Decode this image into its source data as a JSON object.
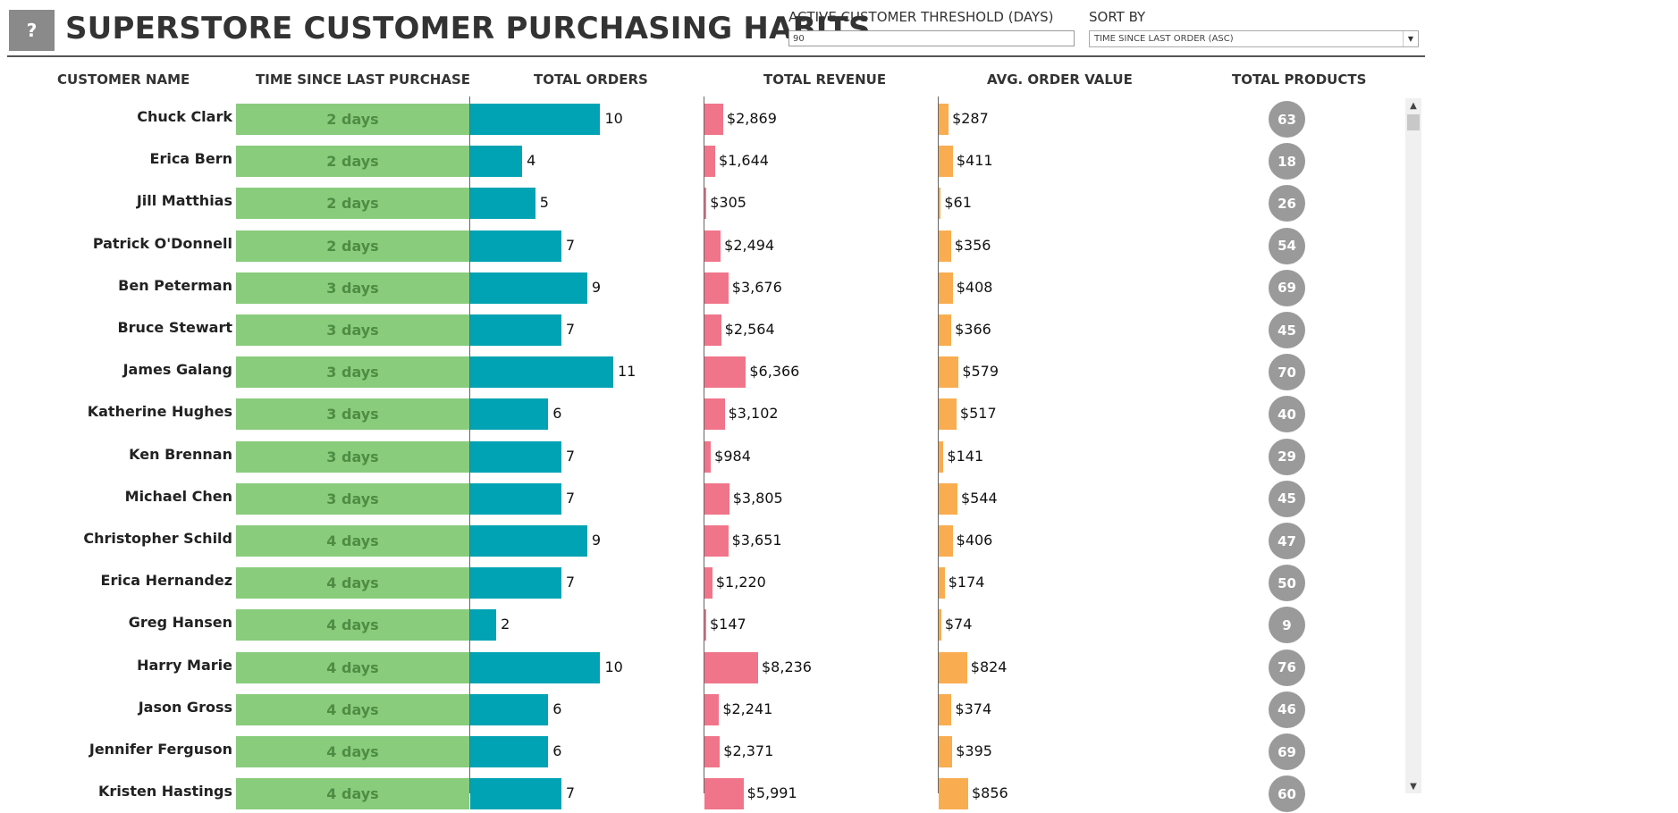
{
  "help_label": "?",
  "title": "SUPERSTORE CUSTOMER PURCHASING HABITS",
  "controls": {
    "threshold_label": "ACTIVE CUSTOMER THRESHOLD (DAYS)",
    "threshold_value": "90",
    "sort_label": "SORT BY",
    "sort_value": "TIME SINCE LAST ORDER (ASC)"
  },
  "columns": {
    "customer_name": "CUSTOMER NAME",
    "time_since": "TIME SINCE LAST PURCHASE",
    "orders": "TOTAL ORDERS",
    "revenue": "TOTAL REVENUE",
    "aov": "AVG. ORDER VALUE",
    "products": "TOTAL PRODUCTS"
  },
  "colors": {
    "time_bar": "#89cc7c",
    "orders_bar": "#00a3b3",
    "revenue_bar": "#f0758a",
    "aov_bar": "#f9ad50",
    "products_circle": "#9a9a9a"
  },
  "scales": {
    "orders_max": 11,
    "revenue_max": 8236,
    "aov_max": 856
  },
  "rows": [
    {
      "name": "Chuck Clark",
      "time": "2 days",
      "orders": 10,
      "orders_label": "10",
      "revenue": 2869,
      "revenue_label": "$2,869",
      "aov": 287,
      "aov_label": "$287",
      "products": "63"
    },
    {
      "name": "Erica Bern",
      "time": "2 days",
      "orders": 4,
      "orders_label": "4",
      "revenue": 1644,
      "revenue_label": "$1,644",
      "aov": 411,
      "aov_label": "$411",
      "products": "18"
    },
    {
      "name": "Jill Matthias",
      "time": "2 days",
      "orders": 5,
      "orders_label": "5",
      "revenue": 305,
      "revenue_label": "$305",
      "aov": 61,
      "aov_label": "$61",
      "products": "26"
    },
    {
      "name": "Patrick O'Donnell",
      "time": "2 days",
      "orders": 7,
      "orders_label": "7",
      "revenue": 2494,
      "revenue_label": "$2,494",
      "aov": 356,
      "aov_label": "$356",
      "products": "54"
    },
    {
      "name": "Ben Peterman",
      "time": "3 days",
      "orders": 9,
      "orders_label": "9",
      "revenue": 3676,
      "revenue_label": "$3,676",
      "aov": 408,
      "aov_label": "$408",
      "products": "69"
    },
    {
      "name": "Bruce Stewart",
      "time": "3 days",
      "orders": 7,
      "orders_label": "7",
      "revenue": 2564,
      "revenue_label": "$2,564",
      "aov": 366,
      "aov_label": "$366",
      "products": "45"
    },
    {
      "name": "James Galang",
      "time": "3 days",
      "orders": 11,
      "orders_label": "11",
      "revenue": 6366,
      "revenue_label": "$6,366",
      "aov": 579,
      "aov_label": "$579",
      "products": "70"
    },
    {
      "name": "Katherine Hughes",
      "time": "3 days",
      "orders": 6,
      "orders_label": "6",
      "revenue": 3102,
      "revenue_label": "$3,102",
      "aov": 517,
      "aov_label": "$517",
      "products": "40"
    },
    {
      "name": "Ken Brennan",
      "time": "3 days",
      "orders": 7,
      "orders_label": "7",
      "revenue": 984,
      "revenue_label": "$984",
      "aov": 141,
      "aov_label": "$141",
      "products": "29"
    },
    {
      "name": "Michael Chen",
      "time": "3 days",
      "orders": 7,
      "orders_label": "7",
      "revenue": 3805,
      "revenue_label": "$3,805",
      "aov": 544,
      "aov_label": "$544",
      "products": "45"
    },
    {
      "name": "Christopher Schild",
      "time": "4 days",
      "orders": 9,
      "orders_label": "9",
      "revenue": 3651,
      "revenue_label": "$3,651",
      "aov": 406,
      "aov_label": "$406",
      "products": "47"
    },
    {
      "name": "Erica Hernandez",
      "time": "4 days",
      "orders": 7,
      "orders_label": "7",
      "revenue": 1220,
      "revenue_label": "$1,220",
      "aov": 174,
      "aov_label": "$174",
      "products": "50"
    },
    {
      "name": "Greg Hansen",
      "time": "4 days",
      "orders": 2,
      "orders_label": "2",
      "revenue": 147,
      "revenue_label": "$147",
      "aov": 74,
      "aov_label": "$74",
      "products": "9"
    },
    {
      "name": "Harry Marie",
      "time": "4 days",
      "orders": 10,
      "orders_label": "10",
      "revenue": 8236,
      "revenue_label": "$8,236",
      "aov": 824,
      "aov_label": "$824",
      "products": "76"
    },
    {
      "name": "Jason Gross",
      "time": "4 days",
      "orders": 6,
      "orders_label": "6",
      "revenue": 2241,
      "revenue_label": "$2,241",
      "aov": 374,
      "aov_label": "$374",
      "products": "46"
    },
    {
      "name": "Jennifer Ferguson",
      "time": "4 days",
      "orders": 6,
      "orders_label": "6",
      "revenue": 2371,
      "revenue_label": "$2,371",
      "aov": 395,
      "aov_label": "$395",
      "products": "69"
    },
    {
      "name": "Kristen Hastings",
      "time": "4 days",
      "orders": 7,
      "orders_label": "7",
      "revenue": 5991,
      "revenue_label": "$5,991",
      "aov": 856,
      "aov_label": "$856",
      "products": "60"
    }
  ]
}
